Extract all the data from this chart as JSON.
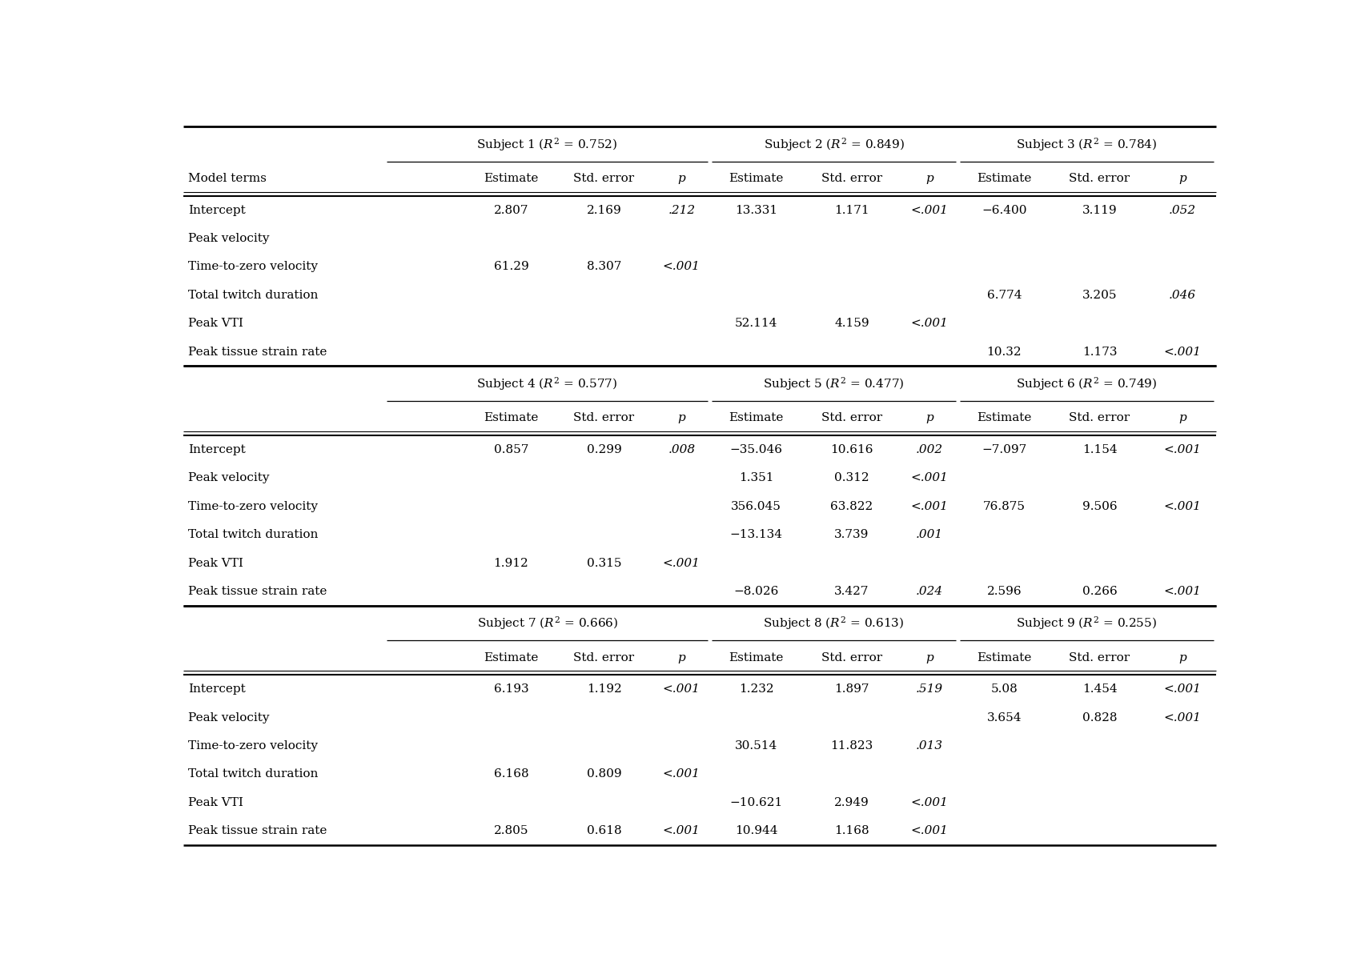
{
  "sections": [
    {
      "subjects": [
        {
          "label": "Subject 1 ($R^2$ = 0.752)"
        },
        {
          "label": "Subject 2 ($R^2$ = 0.849)"
        },
        {
          "label": "Subject 3 ($R^2$ = 0.784)"
        }
      ],
      "rows": [
        [
          "Model terms",
          "Estimate",
          "Std. error",
          "p",
          "Estimate",
          "Std. error",
          "p",
          "Estimate",
          "Std. error",
          "p"
        ],
        [
          "Intercept",
          "2.807",
          "2.169",
          ".212",
          "13.331",
          "1.171",
          "<.001",
          "−6.400",
          "3.119",
          ".052"
        ],
        [
          "Peak velocity",
          "",
          "",
          "",
          "",
          "",
          "",
          "",
          "",
          ""
        ],
        [
          "Time-to-zero velocity",
          "61.29",
          "8.307",
          "<.001",
          "",
          "",
          "",
          "",
          "",
          ""
        ],
        [
          "Total twitch duration",
          "",
          "",
          "",
          "",
          "",
          "",
          "6.774",
          "3.205",
          ".046"
        ],
        [
          "Peak VTI",
          "",
          "",
          "",
          "52.114",
          "4.159",
          "<.001",
          "",
          "",
          ""
        ],
        [
          "Peak tissue strain rate",
          "",
          "",
          "",
          "",
          "",
          "",
          "10.32",
          "1.173",
          "<.001"
        ]
      ]
    },
    {
      "subjects": [
        {
          "label": "Subject 4 ($R^2$ = 0.577)"
        },
        {
          "label": "Subject 5 ($R^2$ = 0.477)"
        },
        {
          "label": "Subject 6 ($R^2$ = 0.749)"
        }
      ],
      "rows": [
        [
          "",
          "Estimate",
          "Std. error",
          "p",
          "Estimate",
          "Std. error",
          "p",
          "Estimate",
          "Std. error",
          "p"
        ],
        [
          "Intercept",
          "0.857",
          "0.299",
          ".008",
          "−35.046",
          "10.616",
          ".002",
          "−7.097",
          "1.154",
          "<.001"
        ],
        [
          "Peak velocity",
          "",
          "",
          "",
          "1.351",
          "0.312",
          "<.001",
          "",
          "",
          ""
        ],
        [
          "Time-to-zero velocity",
          "",
          "",
          "",
          "356.045",
          "63.822",
          "<.001",
          "76.875",
          "9.506",
          "<.001"
        ],
        [
          "Total twitch duration",
          "",
          "",
          "",
          "−13.134",
          "3.739",
          ".001",
          "",
          "",
          ""
        ],
        [
          "Peak VTI",
          "1.912",
          "0.315",
          "<.001",
          "",
          "",
          "",
          "",
          "",
          ""
        ],
        [
          "Peak tissue strain rate",
          "",
          "",
          "",
          "−8.026",
          "3.427",
          ".024",
          "2.596",
          "0.266",
          "<.001"
        ]
      ]
    },
    {
      "subjects": [
        {
          "label": "Subject 7 ($R^2$ = 0.666)"
        },
        {
          "label": "Subject 8 ($R^2$ = 0.613)"
        },
        {
          "label": "Subject 9 ($R^2$ = 0.255)"
        }
      ],
      "rows": [
        [
          "",
          "Estimate",
          "Std. error",
          "p",
          "Estimate",
          "Std. error",
          "p",
          "Estimate",
          "Std. error",
          "p"
        ],
        [
          "Intercept",
          "6.193",
          "1.192",
          "<.001",
          "1.232",
          "1.897",
          ".519",
          "5.08",
          "1.454",
          "<.001"
        ],
        [
          "Peak velocity",
          "",
          "",
          "",
          "",
          "",
          "",
          "3.654",
          "0.828",
          "<.001"
        ],
        [
          "Time-to-zero velocity",
          "",
          "",
          "",
          "30.514",
          "11.823",
          ".013",
          "",
          "",
          ""
        ],
        [
          "Total twitch duration",
          "6.168",
          "0.809",
          "<.001",
          "",
          "",
          "",
          "",
          "",
          ""
        ],
        [
          "Peak VTI",
          "",
          "",
          "",
          "−10.621",
          "2.949",
          "<.001",
          "",
          "",
          ""
        ],
        [
          "Peak tissue strain rate",
          "2.805",
          "0.618",
          "<.001",
          "10.944",
          "1.168",
          "<.001",
          "",
          "",
          ""
        ]
      ]
    }
  ],
  "bg_color": "#ffffff",
  "text_color": "#000000",
  "line_color": "#000000",
  "font_size": 11.0
}
